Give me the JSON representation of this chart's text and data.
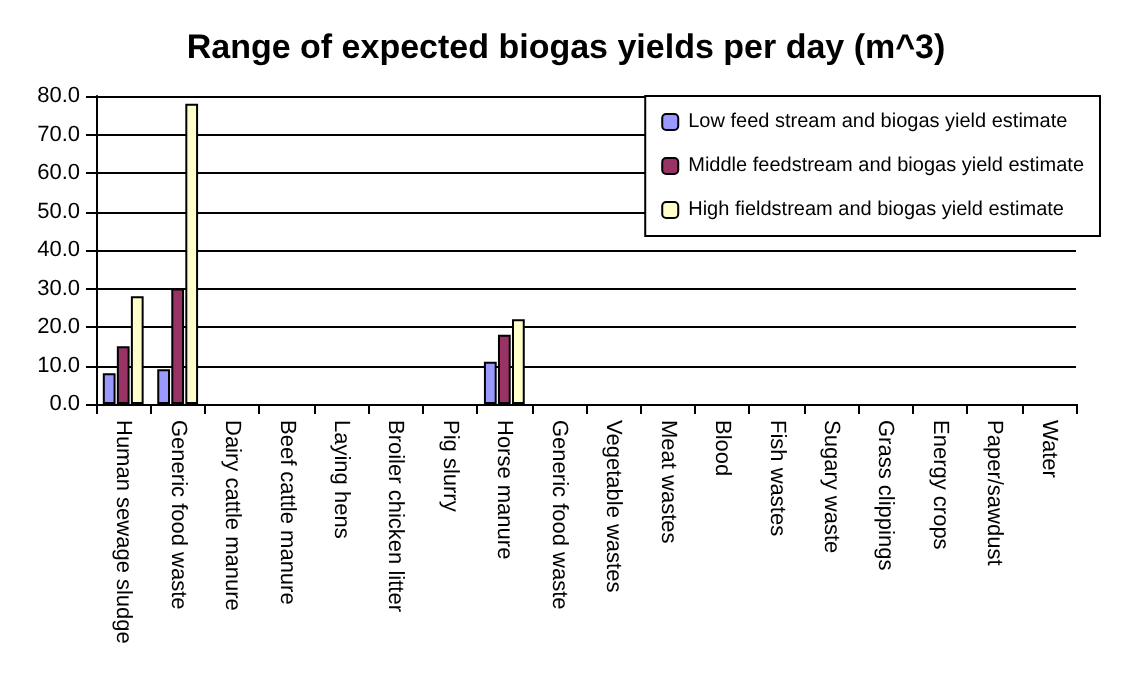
{
  "chart_data": {
    "type": "bar",
    "title": "Range of expected biogas yields per day (m^3)",
    "categories": [
      "Human sewage sludge",
      "Generic food waste",
      "Dairy cattle manure",
      "Beef cattle manure",
      "Laying hens",
      "Broiler chicken litter",
      "Pig slurry",
      "Horse manure",
      "Generic food waste",
      "Vegetable wastes",
      "Meat wastes",
      "Blood",
      "Fish wastes",
      "Sugary waste",
      "Grass clippings",
      "Energy crops",
      "Paper/sawdust",
      "Water"
    ],
    "series": [
      {
        "name": "Low feed stream and biogas yield estimate",
        "color": "#9999ff",
        "values": [
          8,
          9,
          null,
          null,
          null,
          null,
          null,
          11,
          null,
          null,
          null,
          null,
          null,
          null,
          null,
          null,
          null,
          null
        ]
      },
      {
        "name": "Middle feedstream and biogas yield estimate",
        "color": "#993366",
        "values": [
          15,
          30,
          null,
          null,
          null,
          null,
          null,
          18,
          null,
          null,
          null,
          null,
          null,
          null,
          null,
          null,
          null,
          null
        ]
      },
      {
        "name": "High fieldstream and biogas yield estimate",
        "color": "#ffffcc",
        "values": [
          28,
          78,
          null,
          null,
          null,
          null,
          null,
          22,
          null,
          null,
          null,
          null,
          null,
          null,
          null,
          null,
          null,
          null
        ]
      }
    ],
    "ylim": [
      0,
      80
    ],
    "yticks": [
      {
        "value": 0,
        "label": "0.0"
      },
      {
        "value": 10,
        "label": "10.0"
      },
      {
        "value": 20,
        "label": "20.0"
      },
      {
        "value": 30,
        "label": "30.0"
      },
      {
        "value": 40,
        "label": "40.0"
      },
      {
        "value": 50,
        "label": "50.0"
      },
      {
        "value": 60,
        "label": "60.0"
      },
      {
        "value": 70,
        "label": "70.0"
      },
      {
        "value": 80,
        "label": "80.0"
      }
    ],
    "grid": "y",
    "legend": "top right"
  }
}
